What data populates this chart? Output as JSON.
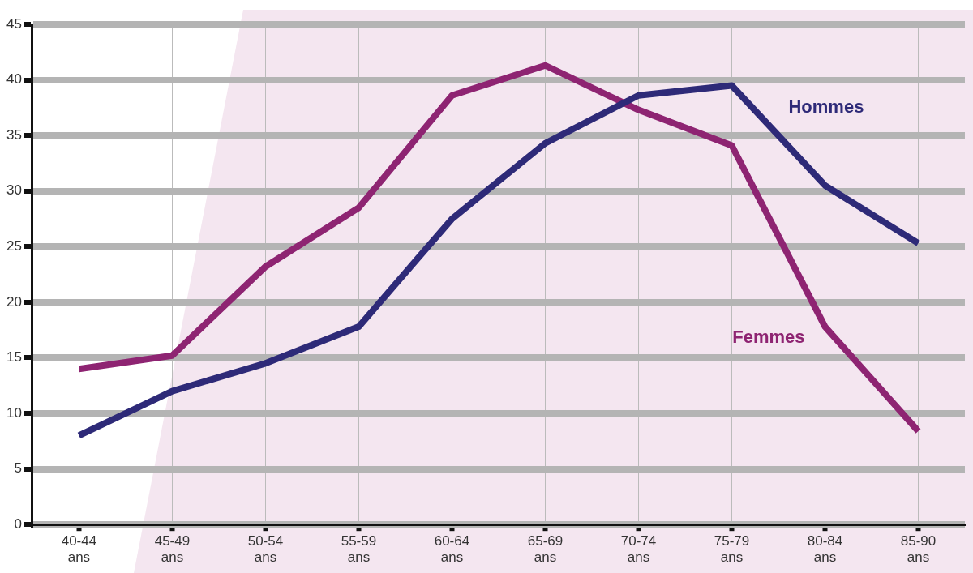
{
  "chart_data": {
    "type": "line",
    "categories": [
      "40-44 ans",
      "45-49 ans",
      "50-54 ans",
      "55-59 ans",
      "60-64 ans",
      "65-69 ans",
      "70-74 ans",
      "75-79 ans",
      "80-84 ans",
      "85-90 ans"
    ],
    "series": [
      {
        "name": "Hommes",
        "color": "#2e2a78",
        "values": [
          8,
          12,
          14.5,
          17.8,
          27.5,
          34.3,
          38.6,
          39.5,
          30.5,
          25.3
        ]
      },
      {
        "name": "Femmes",
        "color": "#8e2472",
        "values": [
          14,
          15.2,
          23.2,
          28.5,
          38.6,
          41.3,
          37.3,
          34.1,
          17.8,
          8.4
        ]
      }
    ],
    "ylim": [
      0,
      45
    ],
    "yticks": [
      0,
      5,
      10,
      15,
      20,
      25,
      30,
      35,
      40,
      45
    ],
    "grid": true,
    "legend": false,
    "marker": "none",
    "line_style": "solid"
  }
}
